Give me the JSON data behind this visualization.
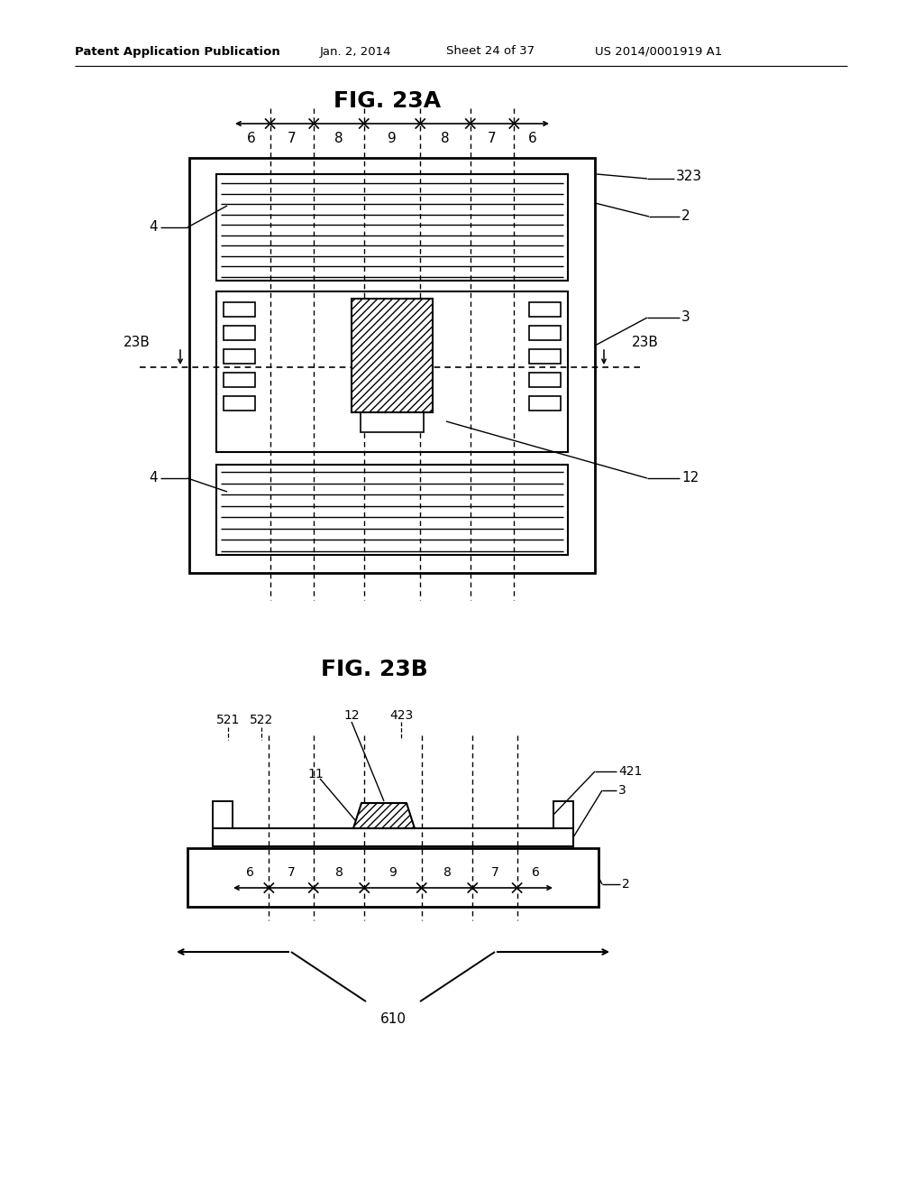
{
  "bg_color": "#ffffff",
  "header_text": "Patent Application Publication",
  "header_date": "Jan. 2, 2014",
  "header_sheet": "Sheet 24 of 37",
  "header_patent": "US 2014/0001919 A1",
  "fig23a_title": "FIG. 23A",
  "fig23b_title": "FIG. 23B",
  "label_323": "323",
  "label_2_a": "2",
  "label_3_a": "3",
  "label_4_top": "4",
  "label_4_bot": "4",
  "label_12_a": "12",
  "label_23B_left": "23B",
  "label_23B_right": "23B",
  "dim_labels": [
    "6",
    "7",
    "8",
    "9",
    "8",
    "7",
    "6"
  ],
  "label_521": "521",
  "label_522": "522",
  "label_12_b": "12",
  "label_423": "423",
  "label_11": "11",
  "label_3_b": "3",
  "label_421": "421",
  "label_2_b": "2",
  "label_610": "610"
}
